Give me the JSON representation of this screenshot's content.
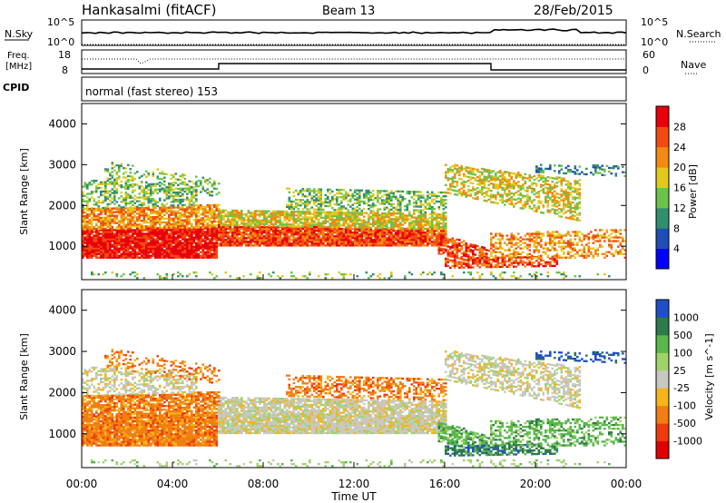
{
  "header": {
    "radar": "Hankasalmi (fitACF)",
    "beam": "Beam 13",
    "date": "28/Feb/2015"
  },
  "top_panel": {
    "left_label": "N.Sky",
    "right_label": "N.Search",
    "left_ticks": [
      "10^5",
      "10^0"
    ],
    "right_ticks": [
      "10^5",
      "10^0"
    ]
  },
  "freq_panel": {
    "left_label_line1": "Freq.",
    "left_label_line2": "[MHz]",
    "right_label": "Nave",
    "left_ticks": [
      "18",
      "8"
    ],
    "right_ticks": [
      "60",
      "0"
    ]
  },
  "cpid_panel": {
    "label": "CPID",
    "text": "normal (fast stereo) 153"
  },
  "x_axis": {
    "label": "Time UT",
    "ticks": [
      "00:00",
      "04:00",
      "08:00",
      "12:00",
      "16:00",
      "20:00",
      "00:00"
    ]
  },
  "power_panel": {
    "ylabel": "Slant Range [km]",
    "yticks": [
      "4000",
      "3000",
      "2000",
      "1000"
    ],
    "colorbar_label": "Power [dB]",
    "colorbar_ticks": [
      "28",
      "24",
      "20",
      "16",
      "12",
      "8",
      "4"
    ],
    "colors": [
      "#0000ff",
      "#1f4fb5",
      "#2f8f6f",
      "#6cc34a",
      "#e2c81b",
      "#f28a13",
      "#f24a10",
      "#e8000b"
    ]
  },
  "velocity_panel": {
    "ylabel": "Slant Range [km]",
    "yticks": [
      "4000",
      "3000",
      "2000",
      "1000"
    ],
    "colorbar_label": "Velocity [m s^-1]",
    "colorbar_ticks": [
      "1000",
      "500",
      "100",
      "25",
      "-25",
      "-100",
      "-500",
      "-1000"
    ],
    "colors": [
      "#1f4fc8",
      "#2f7a4a",
      "#58b84a",
      "#9ed36a",
      "#c8c8c0",
      "#f5b51a",
      "#f07e12",
      "#ee3a0c",
      "#e00000"
    ]
  },
  "chart_data": {
    "type": "heatmap",
    "x_range_hours": [
      0,
      24
    ],
    "y_range_km": [
      180,
      4500
    ],
    "panels": [
      "Power [dB]",
      "Velocity [m s^-1]"
    ]
  }
}
